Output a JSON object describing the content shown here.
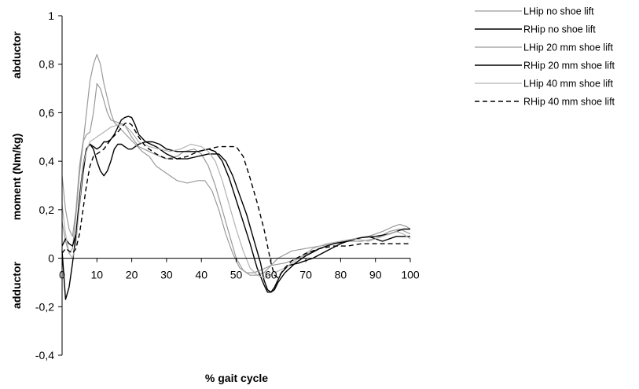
{
  "chart_data": {
    "type": "line",
    "title": "",
    "xlabel": "% gait cycle",
    "ylabel": "moment (Nm/kg)",
    "ylabel_top": "abductor",
    "ylabel_bottom": "adductor",
    "xlim": [
      0,
      100
    ],
    "ylim": [
      -0.4,
      1
    ],
    "xticks": [
      "0",
      "10",
      "20",
      "30",
      "40",
      "50",
      "60",
      "70",
      "80",
      "90",
      "100"
    ],
    "yticks": [
      "-0,4",
      "-0,2",
      "0",
      "0,2",
      "0,4",
      "0,6",
      "0,8",
      "1"
    ],
    "grid": false,
    "legend_position": "top-right",
    "series": [
      {
        "name": "LHip no shoe lift",
        "color": "#9a9a9a",
        "dash": "solid",
        "points": [
          [
            0,
            0.34
          ],
          [
            1,
            0.2
          ],
          [
            2,
            0.12
          ],
          [
            3,
            0.09
          ],
          [
            4,
            0.2
          ],
          [
            5,
            0.38
          ],
          [
            6,
            0.48
          ],
          [
            7,
            0.51
          ],
          [
            8,
            0.52
          ],
          [
            9,
            0.6
          ],
          [
            10,
            0.72
          ],
          [
            11,
            0.7
          ],
          [
            12,
            0.65
          ],
          [
            13,
            0.6
          ],
          [
            14,
            0.57
          ],
          [
            16,
            0.56
          ],
          [
            18,
            0.55
          ],
          [
            20,
            0.5
          ],
          [
            22,
            0.46
          ],
          [
            25,
            0.44
          ],
          [
            28,
            0.42
          ],
          [
            30,
            0.41
          ],
          [
            33,
            0.42
          ],
          [
            35,
            0.44
          ],
          [
            38,
            0.45
          ],
          [
            40,
            0.43
          ],
          [
            42,
            0.38
          ],
          [
            44,
            0.3
          ],
          [
            46,
            0.2
          ],
          [
            48,
            0.1
          ],
          [
            50,
            0.0
          ],
          [
            52,
            -0.05
          ],
          [
            54,
            -0.07
          ],
          [
            56,
            -0.07
          ],
          [
            58,
            -0.06
          ],
          [
            60,
            -0.03
          ],
          [
            62,
            0.0
          ],
          [
            66,
            0.03
          ],
          [
            70,
            0.04
          ],
          [
            74,
            0.05
          ],
          [
            78,
            0.06
          ],
          [
            82,
            0.07
          ],
          [
            86,
            0.07
          ],
          [
            90,
            0.08
          ],
          [
            94,
            0.11
          ],
          [
            97,
            0.12
          ],
          [
            100,
            0.1
          ]
        ]
      },
      {
        "name": "RHip no shoe lift",
        "color": "#000000",
        "dash": "solid",
        "points": [
          [
            0,
            0.03
          ],
          [
            1,
            -0.17
          ],
          [
            2,
            -0.12
          ],
          [
            3,
            -0.02
          ],
          [
            4,
            0.1
          ],
          [
            5,
            0.25
          ],
          [
            6,
            0.38
          ],
          [
            7,
            0.45
          ],
          [
            8,
            0.47
          ],
          [
            9,
            0.45
          ],
          [
            10,
            0.4
          ],
          [
            11,
            0.36
          ],
          [
            12,
            0.34
          ],
          [
            13,
            0.36
          ],
          [
            14,
            0.4
          ],
          [
            15,
            0.45
          ],
          [
            16,
            0.47
          ],
          [
            17,
            0.47
          ],
          [
            18,
            0.46
          ],
          [
            19,
            0.45
          ],
          [
            20,
            0.45
          ],
          [
            22,
            0.47
          ],
          [
            24,
            0.48
          ],
          [
            26,
            0.48
          ],
          [
            28,
            0.47
          ],
          [
            30,
            0.45
          ],
          [
            33,
            0.44
          ],
          [
            36,
            0.44
          ],
          [
            39,
            0.44
          ],
          [
            42,
            0.45
          ],
          [
            44,
            0.44
          ],
          [
            46,
            0.4
          ],
          [
            48,
            0.33
          ],
          [
            50,
            0.24
          ],
          [
            52,
            0.15
          ],
          [
            54,
            0.06
          ],
          [
            56,
            -0.04
          ],
          [
            58,
            -0.11
          ],
          [
            59,
            -0.14
          ],
          [
            60,
            -0.14
          ],
          [
            61,
            -0.12
          ],
          [
            63,
            -0.06
          ],
          [
            65,
            -0.03
          ],
          [
            68,
            -0.02
          ],
          [
            72,
            0.0
          ],
          [
            76,
            0.03
          ],
          [
            80,
            0.06
          ],
          [
            84,
            0.08
          ],
          [
            88,
            0.09
          ],
          [
            92,
            0.07
          ],
          [
            96,
            0.09
          ],
          [
            100,
            0.09
          ]
        ]
      },
      {
        "name": "LHip 20 mm shoe lift",
        "color": "#9a9a9a",
        "dash": "solid",
        "points": [
          [
            0,
            0.15
          ],
          [
            1,
            0.07
          ],
          [
            2,
            0.02
          ],
          [
            3,
            0.04
          ],
          [
            4,
            0.18
          ],
          [
            5,
            0.35
          ],
          [
            6,
            0.47
          ],
          [
            7,
            0.6
          ],
          [
            8,
            0.73
          ],
          [
            9,
            0.8
          ],
          [
            10,
            0.84
          ],
          [
            11,
            0.8
          ],
          [
            12,
            0.72
          ],
          [
            13,
            0.66
          ],
          [
            14,
            0.6
          ],
          [
            15,
            0.56
          ],
          [
            17,
            0.53
          ],
          [
            19,
            0.5
          ],
          [
            21,
            0.47
          ],
          [
            23,
            0.44
          ],
          [
            25,
            0.42
          ],
          [
            27,
            0.38
          ],
          [
            30,
            0.35
          ],
          [
            33,
            0.32
          ],
          [
            36,
            0.31
          ],
          [
            39,
            0.32
          ],
          [
            41,
            0.32
          ],
          [
            43,
            0.28
          ],
          [
            45,
            0.2
          ],
          [
            47,
            0.1
          ],
          [
            49,
            0.02
          ],
          [
            51,
            -0.04
          ],
          [
            53,
            -0.06
          ],
          [
            55,
            -0.06
          ],
          [
            57,
            -0.05
          ],
          [
            60,
            -0.03
          ],
          [
            64,
            -0.02
          ],
          [
            68,
            0.0
          ],
          [
            72,
            0.03
          ],
          [
            76,
            0.05
          ],
          [
            80,
            0.07
          ],
          [
            84,
            0.08
          ],
          [
            88,
            0.09
          ],
          [
            92,
            0.11
          ],
          [
            95,
            0.13
          ],
          [
            97,
            0.14
          ],
          [
            99,
            0.13
          ],
          [
            100,
            0.12
          ]
        ]
      },
      {
        "name": "RHip 20 mm shoe lift",
        "color": "#000000",
        "dash": "solid",
        "points": [
          [
            0,
            0.05
          ],
          [
            1,
            0.08
          ],
          [
            2,
            0.06
          ],
          [
            3,
            0.05
          ],
          [
            4,
            0.1
          ],
          [
            5,
            0.22
          ],
          [
            6,
            0.35
          ],
          [
            7,
            0.45
          ],
          [
            8,
            0.47
          ],
          [
            9,
            0.46
          ],
          [
            10,
            0.45
          ],
          [
            11,
            0.46
          ],
          [
            12,
            0.48
          ],
          [
            13,
            0.48
          ],
          [
            14,
            0.49
          ],
          [
            15,
            0.51
          ],
          [
            16,
            0.54
          ],
          [
            17,
            0.57
          ],
          [
            18,
            0.58
          ],
          [
            19,
            0.585
          ],
          [
            20,
            0.58
          ],
          [
            21,
            0.55
          ],
          [
            22,
            0.51
          ],
          [
            24,
            0.48
          ],
          [
            27,
            0.46
          ],
          [
            30,
            0.43
          ],
          [
            33,
            0.41
          ],
          [
            36,
            0.41
          ],
          [
            39,
            0.42
          ],
          [
            42,
            0.43
          ],
          [
            45,
            0.43
          ],
          [
            47,
            0.4
          ],
          [
            49,
            0.34
          ],
          [
            51,
            0.26
          ],
          [
            53,
            0.18
          ],
          [
            55,
            0.08
          ],
          [
            57,
            -0.02
          ],
          [
            58,
            -0.09
          ],
          [
            59,
            -0.13
          ],
          [
            60,
            -0.14
          ],
          [
            61,
            -0.13
          ],
          [
            62,
            -0.1
          ],
          [
            64,
            -0.06
          ],
          [
            67,
            -0.02
          ],
          [
            70,
            0.01
          ],
          [
            74,
            0.04
          ],
          [
            78,
            0.06
          ],
          [
            82,
            0.07
          ],
          [
            86,
            0.085
          ],
          [
            90,
            0.09
          ],
          [
            94,
            0.1
          ],
          [
            98,
            0.12
          ],
          [
            100,
            0.12
          ]
        ]
      },
      {
        "name": "LHip 40 mm shoe lift",
        "color": "#b3b3b3",
        "dash": "solid",
        "points": [
          [
            0,
            0.22
          ],
          [
            1,
            0.1
          ],
          [
            2,
            0.02
          ],
          [
            3,
            0.0
          ],
          [
            4,
            0.06
          ],
          [
            5,
            0.22
          ],
          [
            6,
            0.38
          ],
          [
            7,
            0.44
          ],
          [
            8,
            0.48
          ],
          [
            10,
            0.5
          ],
          [
            12,
            0.52
          ],
          [
            14,
            0.54
          ],
          [
            16,
            0.55
          ],
          [
            18,
            0.55
          ],
          [
            20,
            0.52
          ],
          [
            22,
            0.48
          ],
          [
            25,
            0.46
          ],
          [
            28,
            0.45
          ],
          [
            31,
            0.44
          ],
          [
            34,
            0.45
          ],
          [
            37,
            0.47
          ],
          [
            40,
            0.46
          ],
          [
            42,
            0.44
          ],
          [
            44,
            0.4
          ],
          [
            46,
            0.32
          ],
          [
            48,
            0.22
          ],
          [
            50,
            0.12
          ],
          [
            52,
            0.03
          ],
          [
            54,
            -0.04
          ],
          [
            56,
            -0.07
          ],
          [
            58,
            -0.08
          ],
          [
            61,
            -0.06
          ],
          [
            64,
            -0.04
          ],
          [
            68,
            0.0
          ],
          [
            72,
            0.04
          ],
          [
            76,
            0.06
          ],
          [
            80,
            0.07
          ],
          [
            84,
            0.08
          ],
          [
            88,
            0.07
          ],
          [
            92,
            0.09
          ],
          [
            96,
            0.11
          ],
          [
            98,
            0.1
          ],
          [
            100,
            0.08
          ]
        ]
      },
      {
        "name": "RHip 40 mm shoe lift",
        "color": "#000000",
        "dash": "dashed",
        "points": [
          [
            0,
            0.02
          ],
          [
            1,
            0.04
          ],
          [
            2,
            0.03
          ],
          [
            3,
            0.02
          ],
          [
            4,
            0.04
          ],
          [
            5,
            0.1
          ],
          [
            6,
            0.2
          ],
          [
            7,
            0.3
          ],
          [
            8,
            0.38
          ],
          [
            9,
            0.42
          ],
          [
            10,
            0.43
          ],
          [
            12,
            0.45
          ],
          [
            14,
            0.49
          ],
          [
            16,
            0.52
          ],
          [
            18,
            0.555
          ],
          [
            19,
            0.56
          ],
          [
            20,
            0.55
          ],
          [
            22,
            0.5
          ],
          [
            24,
            0.46
          ],
          [
            27,
            0.43
          ],
          [
            30,
            0.41
          ],
          [
            33,
            0.41
          ],
          [
            36,
            0.42
          ],
          [
            39,
            0.44
          ],
          [
            42,
            0.45
          ],
          [
            45,
            0.46
          ],
          [
            48,
            0.46
          ],
          [
            50,
            0.46
          ],
          [
            52,
            0.42
          ],
          [
            54,
            0.33
          ],
          [
            56,
            0.23
          ],
          [
            58,
            0.12
          ],
          [
            59,
            0.05
          ],
          [
            60,
            -0.02
          ],
          [
            61,
            -0.07
          ],
          [
            62,
            -0.08
          ],
          [
            64,
            -0.04
          ],
          [
            66,
            -0.01
          ],
          [
            70,
            0.02
          ],
          [
            74,
            0.04
          ],
          [
            78,
            0.05
          ],
          [
            82,
            0.05
          ],
          [
            86,
            0.06
          ],
          [
            90,
            0.06
          ],
          [
            94,
            0.06
          ],
          [
            97,
            0.06
          ],
          [
            100,
            0.06
          ]
        ]
      }
    ]
  }
}
